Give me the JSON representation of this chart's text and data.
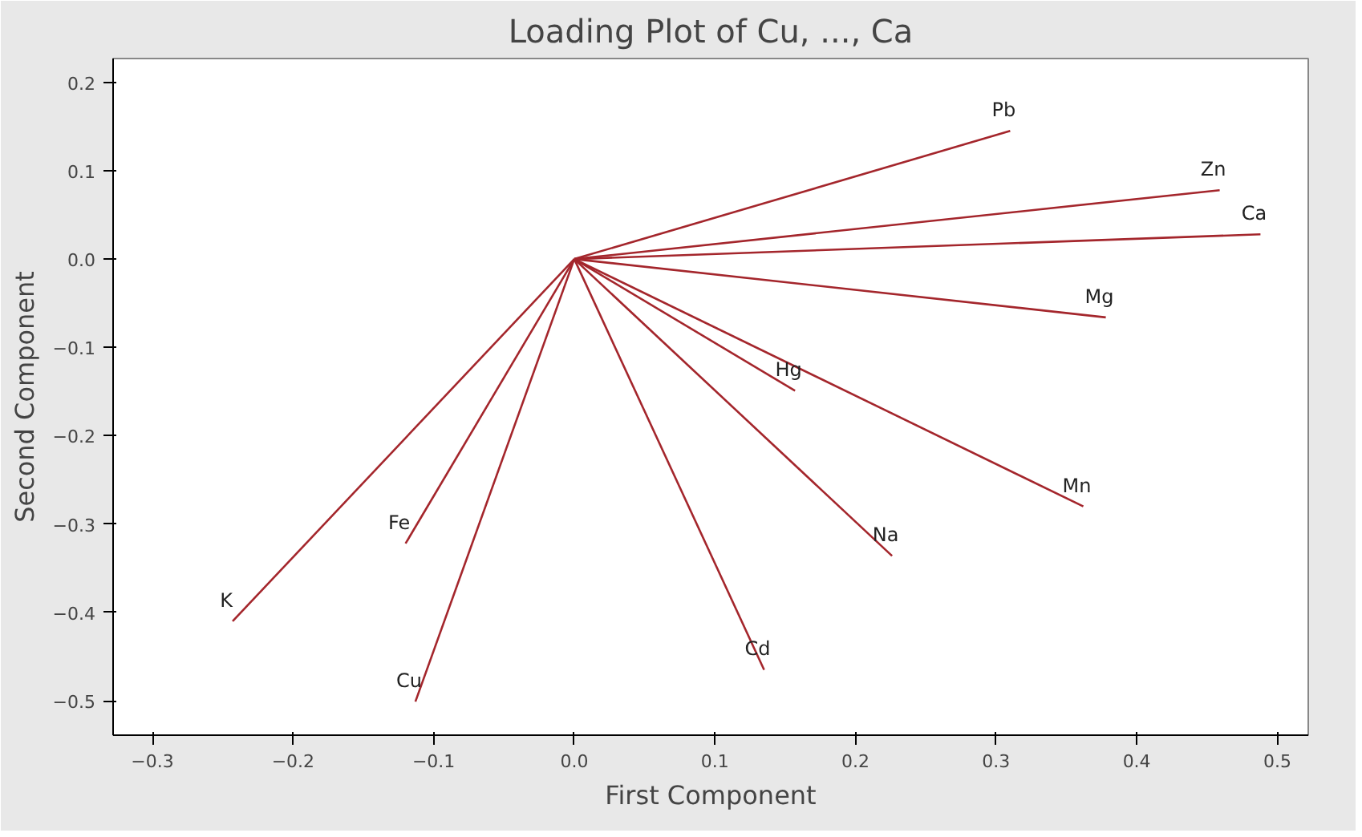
{
  "chart_data": {
    "type": "line",
    "title": "Loading Plot of Cu, ..., Ca",
    "xlabel": "First Component",
    "ylabel": "Second Component",
    "xlim": [
      -0.328,
      0.522
    ],
    "ylim": [
      -0.539,
      0.227
    ],
    "xticks": [
      -0.3,
      -0.2,
      -0.1,
      {
        "value": 0,
        "label": "0.0"
      },
      0.1,
      0.2,
      0.3,
      0.4,
      0.5
    ],
    "yticks": [
      -0.5,
      -0.4,
      -0.3,
      -0.2,
      -0.1,
      {
        "value": 0,
        "label": "0.0"
      },
      0.1,
      0.2
    ],
    "grid": false,
    "legend": false,
    "marker": "none",
    "line_style": "solid",
    "series": [
      {
        "name": "Pb",
        "color": "#a4262c",
        "x": [
          0,
          0.31
        ],
        "values": [
          0,
          0.145
        ]
      },
      {
        "name": "Zn",
        "color": "#a4262c",
        "x": [
          0,
          0.459
        ],
        "values": [
          0,
          0.078
        ]
      },
      {
        "name": "Ca",
        "color": "#a4262c",
        "x": [
          0,
          0.488
        ],
        "values": [
          0,
          0.028
        ]
      },
      {
        "name": "Mg",
        "color": "#a4262c",
        "x": [
          0,
          0.378
        ],
        "values": [
          0,
          -0.066
        ]
      },
      {
        "name": "Hg",
        "color": "#a4262c",
        "x": [
          0,
          0.157
        ],
        "values": [
          0,
          -0.149
        ]
      },
      {
        "name": "Mn",
        "color": "#a4262c",
        "x": [
          0,
          0.362
        ],
        "values": [
          0,
          -0.28
        ]
      },
      {
        "name": "Na",
        "color": "#a4262c",
        "x": [
          0,
          0.226
        ],
        "values": [
          0,
          -0.336
        ]
      },
      {
        "name": "Cd",
        "color": "#a4262c",
        "x": [
          0,
          0.135
        ],
        "values": [
          0,
          -0.465
        ]
      },
      {
        "name": "Cu",
        "color": "#a4262c",
        "x": [
          0,
          -0.113
        ],
        "values": [
          0,
          -0.501
        ]
      },
      {
        "name": "Fe",
        "color": "#a4262c",
        "x": [
          0,
          -0.12
        ],
        "values": [
          0,
          -0.322
        ]
      },
      {
        "name": "K",
        "color": "#a4262c",
        "x": [
          0,
          -0.243
        ],
        "values": [
          0,
          -0.41
        ]
      }
    ]
  }
}
